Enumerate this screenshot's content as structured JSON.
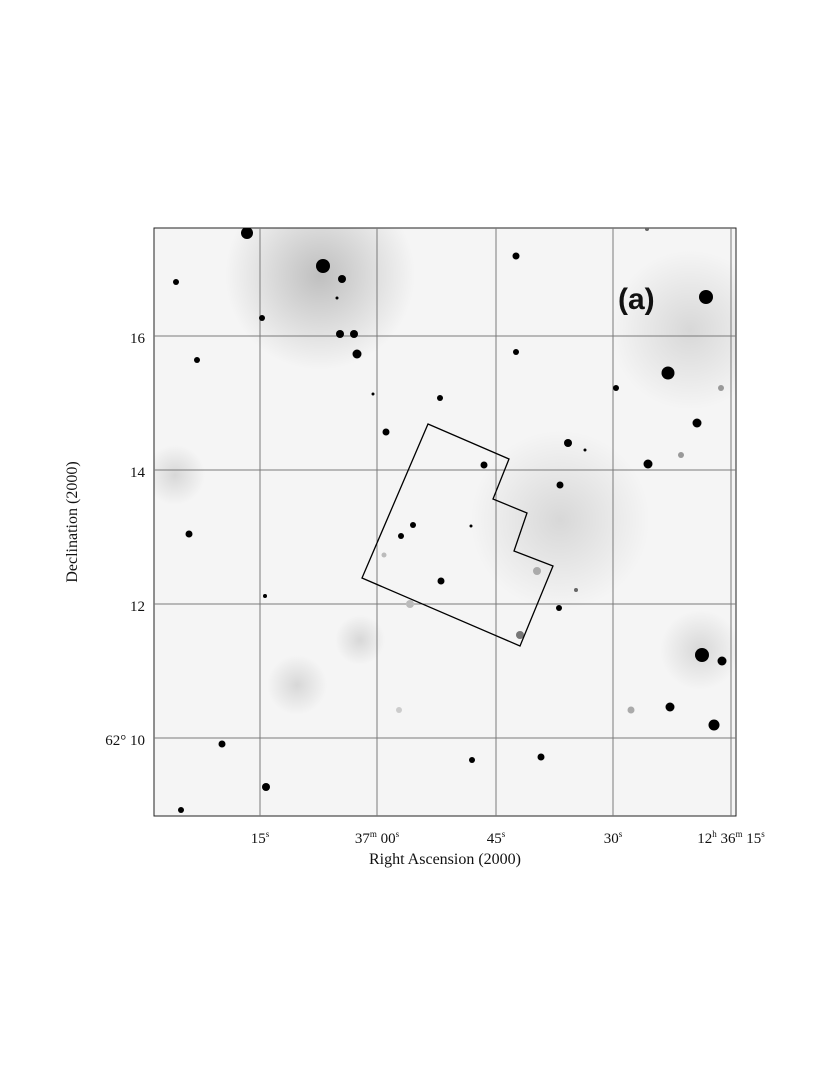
{
  "panel_label": "(a)",
  "axes": {
    "x_title": "Right Ascension (2000)",
    "y_title": "Declination (2000)",
    "x_ticks": [
      {
        "main": "15",
        "sup": "s"
      },
      {
        "main": "37",
        "sup": "m",
        "rest": " 00",
        "sup2": "s"
      },
      {
        "main": "45",
        "sup": "s"
      },
      {
        "main": "30",
        "sup": "s"
      },
      {
        "main": "12",
        "sup": "h",
        "rest": " 36",
        "sup2": "m",
        "rest2": " 15",
        "sup3": "s"
      }
    ],
    "y_ticks": [
      "16",
      "14",
      "12",
      "62° 10"
    ]
  },
  "colors": {
    "background": "#ffffff",
    "image_background": "#f4f4f4",
    "grid": "#7a7a7a",
    "sources": "#000000",
    "outline": "#000000"
  }
}
